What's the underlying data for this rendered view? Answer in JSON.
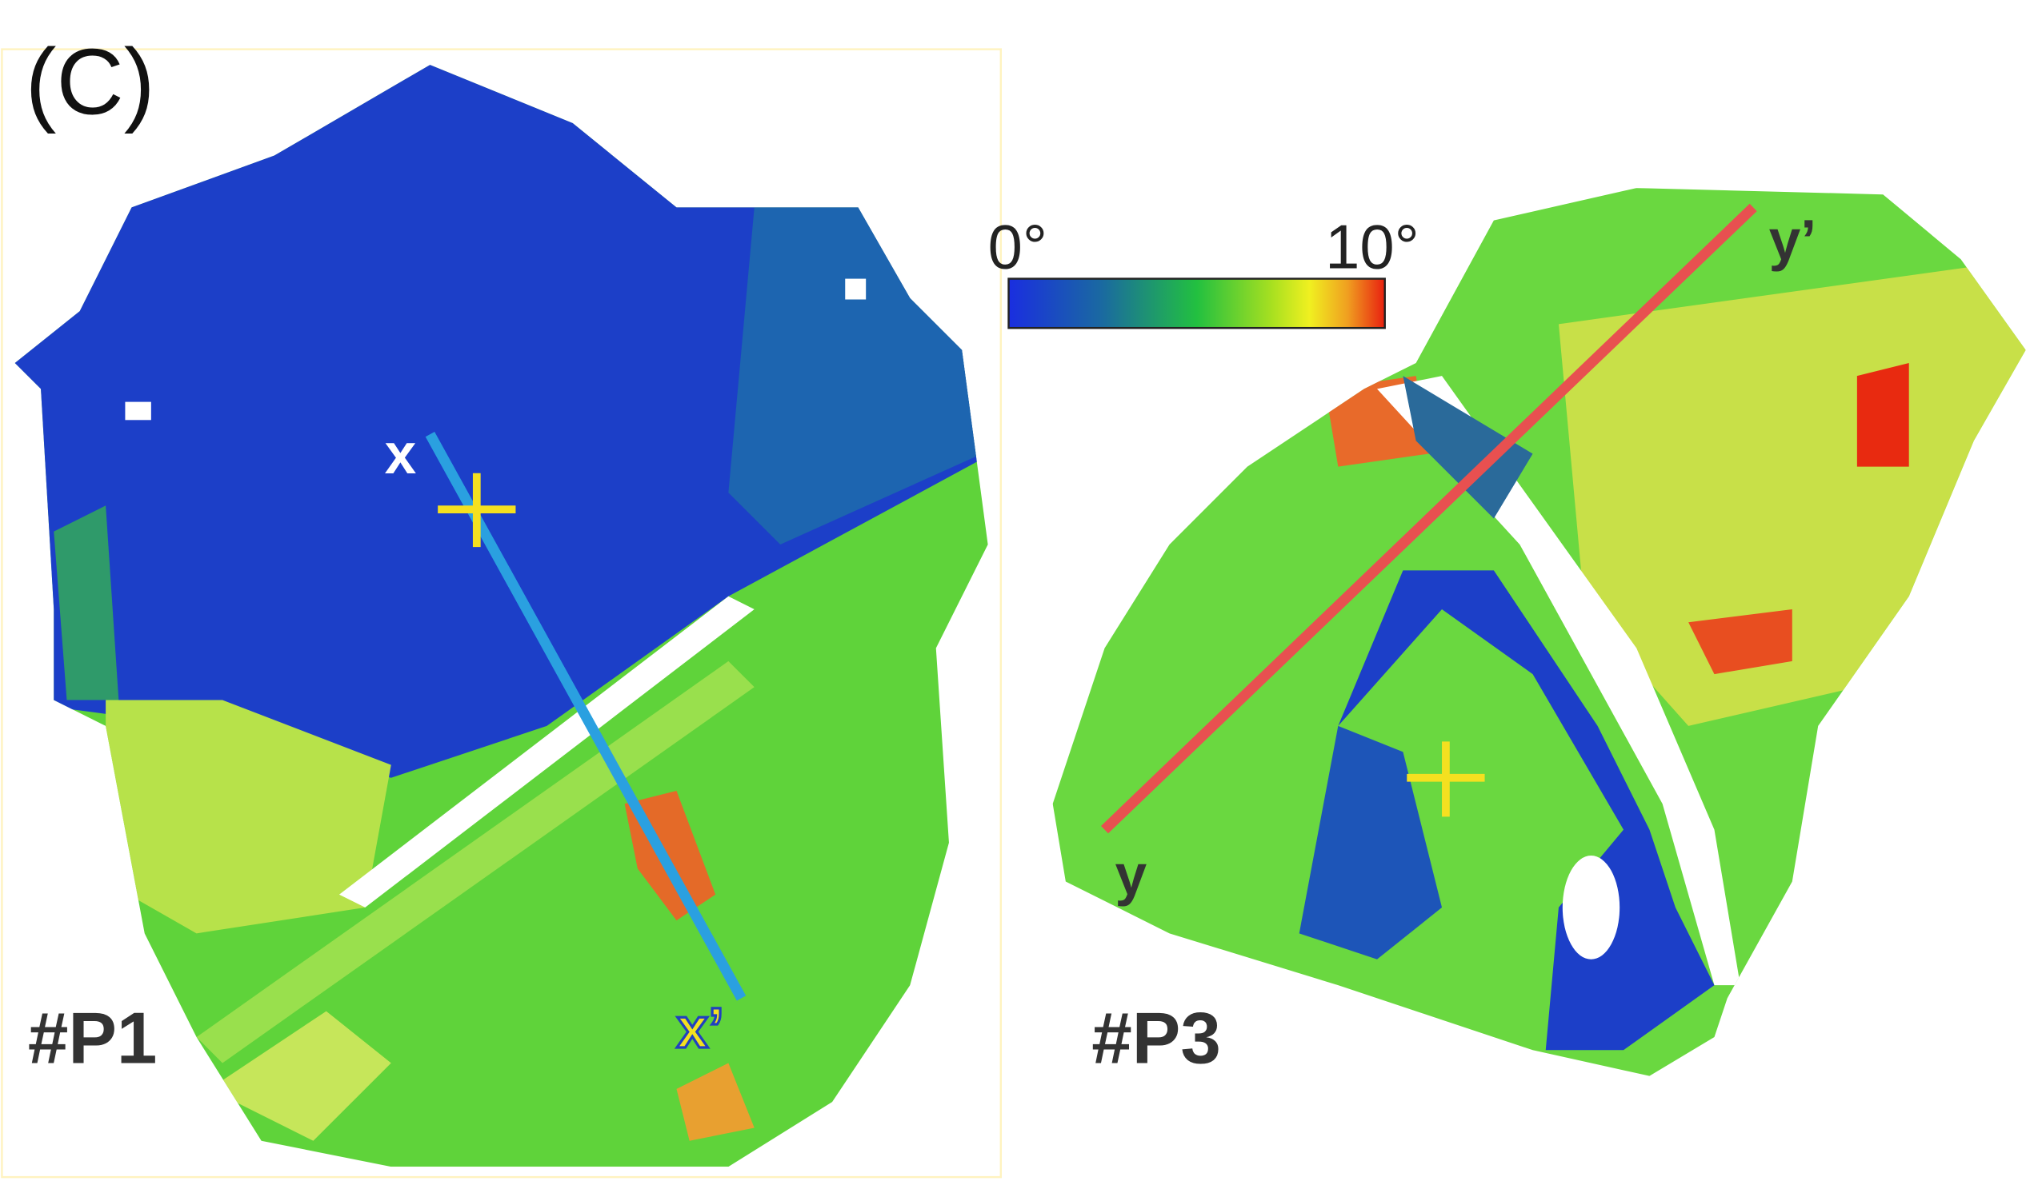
{
  "panel_label": "(C)",
  "colorbar": {
    "min_label": "0°",
    "max_label": "10°"
  },
  "samples": [
    {
      "label": "#P1",
      "line_start": "x",
      "line_end": "x’"
    },
    {
      "label": "#P3",
      "line_start": "y",
      "line_end": "y’"
    }
  ]
}
